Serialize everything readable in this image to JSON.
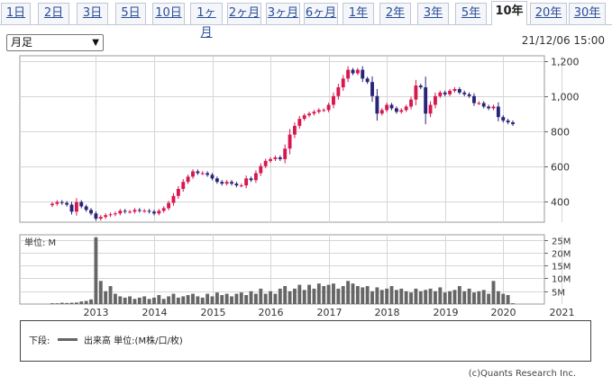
{
  "tabs": [
    "1日",
    "2日",
    "3日",
    "5日",
    "10日",
    "1ヶ月",
    "2ヶ月",
    "3ヶ月",
    "6ヶ月",
    "1年",
    "2年",
    "3年",
    "5年",
    "10年",
    "20年",
    "30年"
  ],
  "active_tab": "10年",
  "period_select": {
    "value": "月足"
  },
  "timestamp": "21/12/06 15:00",
  "volume_panel_label": "単位: M",
  "legend": {
    "prefix": "下段:",
    "label": "出来高 単位:(M株/口/枚)"
  },
  "copyright": "(c)Quants Research Inc.",
  "colors": {
    "up": "#d8174f",
    "down": "#28247a",
    "volume": "#666666",
    "tab_link": "#2a4d9b"
  },
  "chart_data": {
    "type": "candlestick",
    "interval": "monthly",
    "x_tick_labels": [
      "2013",
      "2014",
      "2015",
      "2016",
      "2017",
      "2018",
      "2019",
      "2020",
      "2021"
    ],
    "y_tick_labels": [
      "400",
      "600",
      "800",
      "1,000",
      "1,200"
    ],
    "ylim": [
      280,
      1230
    ],
    "volume_tick_labels": [
      "5M",
      "10M",
      "15M",
      "20M",
      "25M"
    ],
    "volume_ylim": [
      0,
      27
    ],
    "grid": true,
    "monthly_close": [
      385,
      395,
      390,
      380,
      340,
      395,
      370,
      350,
      330,
      300,
      310,
      320,
      325,
      330,
      345,
      340,
      340,
      350,
      345,
      345,
      340,
      330,
      345,
      360,
      390,
      430,
      470,
      510,
      540,
      570,
      560,
      560,
      550,
      530,
      510,
      500,
      510,
      500,
      490,
      490,
      530,
      520,
      560,
      600,
      630,
      640,
      650,
      640,
      700,
      780,
      830,
      870,
      890,
      900,
      910,
      920,
      920,
      950,
      1000,
      1050,
      1100,
      1150,
      1130,
      1150,
      1100,
      1080,
      1000,
      900,
      920,
      950,
      930,
      910,
      920,
      940,
      980,
      1060,
      1050,
      900,
      950,
      1000,
      1020,
      1010,
      1030,
      1040,
      1020,
      1010,
      1000,
      960,
      960,
      940,
      930,
      940,
      880,
      860,
      850,
      840
    ],
    "monthly_volume": [
      0.3,
      0.3,
      0.5,
      0.4,
      0.5,
      0.6,
      1.0,
      1.2,
      1.8,
      26.0,
      9.0,
      5.0,
      7.0,
      4.0,
      3.0,
      2.5,
      3.0,
      2.0,
      2.5,
      3.0,
      2.0,
      2.5,
      3.5,
      2.0,
      3.0,
      4.0,
      2.5,
      3.0,
      3.5,
      4.0,
      3.0,
      2.5,
      4.0,
      3.0,
      4.5,
      3.5,
      4.0,
      3.0,
      4.0,
      4.5,
      3.5,
      5.0,
      4.0,
      6.0,
      4.0,
      5.0,
      4.0,
      6.0,
      7.0,
      5.0,
      6.0,
      7.5,
      5.5,
      7.5,
      6.0,
      8.0,
      7.0,
      7.5,
      8.0,
      6.0,
      7.0,
      9.0,
      8.0,
      7.0,
      6.5,
      7.0,
      5.0,
      6.5,
      5.5,
      6.0,
      7.0,
      5.5,
      6.0,
      5.0,
      4.5,
      6.0,
      5.0,
      5.5,
      6.0,
      5.0,
      6.5,
      4.5,
      5.0,
      5.5,
      7.0,
      5.0,
      6.0,
      4.5,
      5.0,
      5.5,
      4.0,
      9.0,
      5.0,
      4.0,
      3.5,
      0.3
    ]
  }
}
